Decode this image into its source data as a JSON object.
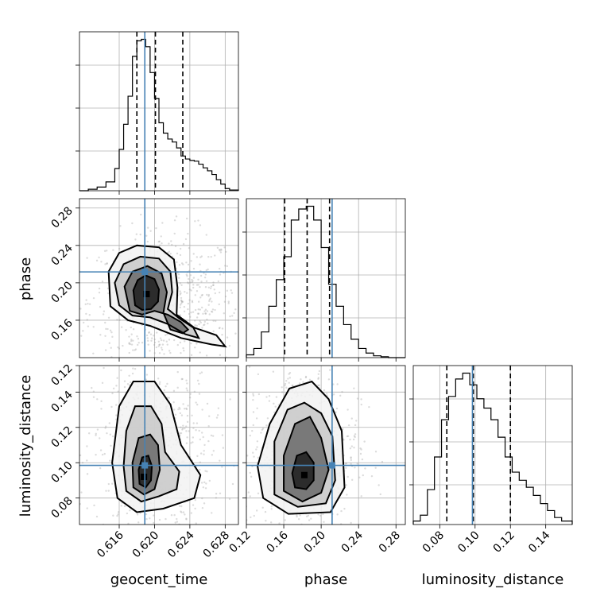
{
  "chart_data": {
    "type": "corner",
    "colors": {
      "truth": "#4682b4",
      "lines": "#000000",
      "points": "#808080"
    },
    "parameters": [
      {
        "name": "geocent_time",
        "label": "geocent_time",
        "range": [
          0.6115,
          0.6295
        ],
        "ticks": [
          0.616,
          0.62,
          0.624,
          0.628
        ],
        "tick_labels": [
          "0.616",
          "0.620",
          "0.624",
          "0.628"
        ],
        "truth": 0.6189,
        "quantiles": [
          0.618,
          0.6201,
          0.6232
        ],
        "histogram": {
          "bin_edges": [
            0.6115,
            0.6125,
            0.6135,
            0.6145,
            0.6155,
            0.616,
            0.6165,
            0.617,
            0.6175,
            0.618,
            0.6185,
            0.619,
            0.6195,
            0.62,
            0.6205,
            0.621,
            0.6215,
            0.622,
            0.6225,
            0.623,
            0.6235,
            0.624,
            0.6245,
            0.625,
            0.6255,
            0.626,
            0.6265,
            0.627,
            0.6275,
            0.628,
            0.6285,
            0.6295
          ],
          "counts": [
            0,
            2,
            5,
            12,
            30,
            56,
            90,
            128,
            182,
            203,
            205,
            195,
            160,
            125,
            92,
            78,
            70,
            66,
            58,
            47,
            43,
            41,
            40,
            36,
            31,
            27,
            22,
            15,
            9,
            3,
            1
          ]
        }
      },
      {
        "name": "phase",
        "label": "phase",
        "range": [
          0.12,
          0.29
        ],
        "ticks": [
          0.12,
          0.16,
          0.2,
          0.24,
          0.28
        ],
        "tick_labels": [
          "0.12",
          "0.16",
          "0.20",
          "0.24",
          "0.28"
        ],
        "y_ticks": [
          0.16,
          0.2,
          0.24,
          0.28
        ],
        "y_tick_labels": [
          "0.16",
          "0.20",
          "0.24",
          "0.28"
        ],
        "truth": 0.2117,
        "quantiles": [
          0.161,
          0.185,
          0.209
        ],
        "histogram": {
          "bin_edges": [
            0.12,
            0.128,
            0.136,
            0.144,
            0.152,
            0.16,
            0.168,
            0.176,
            0.184,
            0.192,
            0.2,
            0.208,
            0.216,
            0.224,
            0.232,
            0.24,
            0.248,
            0.256,
            0.264,
            0.272,
            0.28,
            0.29
          ],
          "counts": [
            3,
            10,
            28,
            56,
            85,
            110,
            150,
            162,
            165,
            150,
            120,
            80,
            56,
            36,
            20,
            10,
            5,
            2,
            1,
            0,
            0
          ]
        }
      },
      {
        "name": "luminosity_distance",
        "label": "luminosity_distance",
        "range": [
          0.065,
          0.155
        ],
        "ticks": [
          0.08,
          0.1,
          0.12,
          0.14
        ],
        "tick_labels": [
          "0.08",
          "0.10",
          "0.12",
          "0.14"
        ],
        "y_ticks": [
          0.08,
          0.1,
          0.12,
          0.14
        ],
        "y_tick_labels": [
          "0.08",
          "0.10",
          "0.12",
          "0.14"
        ],
        "extra_y_tick": 0.155,
        "extra_y_tick_label": "0.12",
        "truth": 0.0985,
        "quantiles": [
          0.084,
          0.099,
          0.12
        ],
        "histogram": {
          "bin_edges": [
            0.065,
            0.069,
            0.073,
            0.077,
            0.081,
            0.085,
            0.089,
            0.093,
            0.097,
            0.101,
            0.105,
            0.109,
            0.113,
            0.117,
            0.121,
            0.125,
            0.129,
            0.133,
            0.137,
            0.141,
            0.145,
            0.149,
            0.155
          ],
          "counts": [
            3,
            8,
            30,
            58,
            90,
            110,
            125,
            130,
            120,
            108,
            100,
            90,
            75,
            58,
            45,
            38,
            32,
            25,
            18,
            12,
            6,
            3
          ]
        }
      }
    ],
    "pairs": [
      {
        "x": "geocent_time",
        "y": "phase",
        "peak": [
          0.6191,
          0.188
        ],
        "contours": [
          [
            [
              0.6178,
              0.176
            ],
            [
              0.6186,
              0.171
            ],
            [
              0.6196,
              0.172
            ],
            [
              0.6204,
              0.18
            ],
            [
              0.6205,
              0.193
            ],
            [
              0.62,
              0.204
            ],
            [
              0.619,
              0.208
            ],
            [
              0.6181,
              0.203
            ],
            [
              0.6176,
              0.192
            ]
          ],
          [
            [
              0.6172,
              0.17
            ],
            [
              0.6186,
              0.166
            ],
            [
              0.62,
              0.17
            ],
            [
              0.6215,
              0.166
            ],
            [
              0.623,
              0.158
            ],
            [
              0.6238,
              0.15
            ],
            [
              0.6232,
              0.146
            ],
            [
              0.6218,
              0.15
            ],
            [
              0.621,
              0.168
            ],
            [
              0.6214,
              0.19
            ],
            [
              0.6208,
              0.21
            ],
            [
              0.6192,
              0.218
            ],
            [
              0.6175,
              0.212
            ],
            [
              0.6166,
              0.196
            ]
          ],
          [
            [
              0.616,
              0.176
            ],
            [
              0.6175,
              0.165
            ],
            [
              0.6195,
              0.163
            ],
            [
              0.6215,
              0.156
            ],
            [
              0.6235,
              0.145
            ],
            [
              0.625,
              0.141
            ],
            [
              0.6244,
              0.152
            ],
            [
              0.6228,
              0.162
            ],
            [
              0.6215,
              0.172
            ],
            [
              0.622,
              0.19
            ],
            [
              0.6218,
              0.212
            ],
            [
              0.6205,
              0.226
            ],
            [
              0.6184,
              0.228
            ],
            [
              0.6165,
              0.22
            ],
            [
              0.6155,
              0.2
            ]
          ],
          [
            [
              0.615,
              0.175
            ],
            [
              0.617,
              0.16
            ],
            [
              0.6195,
              0.154
            ],
            [
              0.623,
              0.141
            ],
            [
              0.6265,
              0.134
            ],
            [
              0.628,
              0.132
            ],
            [
              0.627,
              0.144
            ],
            [
              0.6245,
              0.152
            ],
            [
              0.6225,
              0.166
            ],
            [
              0.6226,
              0.195
            ],
            [
              0.6222,
              0.225
            ],
            [
              0.6205,
              0.238
            ],
            [
              0.618,
              0.24
            ],
            [
              0.616,
              0.232
            ],
            [
              0.6148,
              0.212
            ]
          ]
        ]
      },
      {
        "x": "geocent_time",
        "y": "luminosity_distance",
        "peak": [
          0.6188,
          0.092
        ],
        "contours": [
          [
            [
              0.6183,
              0.088
            ],
            [
              0.619,
              0.086
            ],
            [
              0.6196,
              0.09
            ],
            [
              0.6197,
              0.098
            ],
            [
              0.6193,
              0.104
            ],
            [
              0.6186,
              0.103
            ],
            [
              0.6182,
              0.096
            ]
          ],
          [
            [
              0.6176,
              0.086
            ],
            [
              0.6188,
              0.082
            ],
            [
              0.62,
              0.085
            ],
            [
              0.6206,
              0.096
            ],
            [
              0.6204,
              0.11
            ],
            [
              0.6195,
              0.116
            ],
            [
              0.6182,
              0.114
            ],
            [
              0.6175,
              0.1
            ]
          ],
          [
            [
              0.6168,
              0.084
            ],
            [
              0.6185,
              0.078
            ],
            [
              0.6205,
              0.081
            ],
            [
              0.6225,
              0.085
            ],
            [
              0.6228,
              0.095
            ],
            [
              0.6212,
              0.106
            ],
            [
              0.6208,
              0.122
            ],
            [
              0.6196,
              0.132
            ],
            [
              0.6178,
              0.132
            ],
            [
              0.6168,
              0.118
            ],
            [
              0.6165,
              0.098
            ]
          ],
          [
            [
              0.6158,
              0.08
            ],
            [
              0.618,
              0.072
            ],
            [
              0.621,
              0.074
            ],
            [
              0.6245,
              0.08
            ],
            [
              0.6252,
              0.093
            ],
            [
              0.623,
              0.11
            ],
            [
              0.6218,
              0.133
            ],
            [
              0.62,
              0.146
            ],
            [
              0.6176,
              0.146
            ],
            [
              0.616,
              0.132
            ],
            [
              0.6152,
              0.1
            ]
          ]
        ]
      },
      {
        "x": "phase",
        "y": "luminosity_distance",
        "peak": [
          0.182,
          0.093
        ],
        "contours": [
          [
            [
              0.172,
              0.086
            ],
            [
              0.184,
              0.085
            ],
            [
              0.192,
              0.09
            ],
            [
              0.192,
              0.1
            ],
            [
              0.184,
              0.106
            ],
            [
              0.174,
              0.104
            ],
            [
              0.169,
              0.094
            ]
          ],
          [
            [
              0.16,
              0.084
            ],
            [
              0.18,
              0.078
            ],
            [
              0.2,
              0.083
            ],
            [
              0.208,
              0.096
            ],
            [
              0.2,
              0.114
            ],
            [
              0.188,
              0.126
            ],
            [
              0.172,
              0.122
            ],
            [
              0.16,
              0.104
            ]
          ],
          [
            [
              0.15,
              0.082
            ],
            [
              0.175,
              0.075
            ],
            [
              0.205,
              0.077
            ],
            [
              0.215,
              0.09
            ],
            [
              0.212,
              0.115
            ],
            [
              0.2,
              0.128
            ],
            [
              0.182,
              0.134
            ],
            [
              0.164,
              0.13
            ],
            [
              0.15,
              0.112
            ]
          ],
          [
            [
              0.138,
              0.08
            ],
            [
              0.165,
              0.071
            ],
            [
              0.21,
              0.072
            ],
            [
              0.225,
              0.086
            ],
            [
              0.222,
              0.118
            ],
            [
              0.208,
              0.136
            ],
            [
              0.19,
              0.146
            ],
            [
              0.166,
              0.142
            ],
            [
              0.145,
              0.122
            ],
            [
              0.132,
              0.098
            ]
          ]
        ]
      }
    ]
  }
}
